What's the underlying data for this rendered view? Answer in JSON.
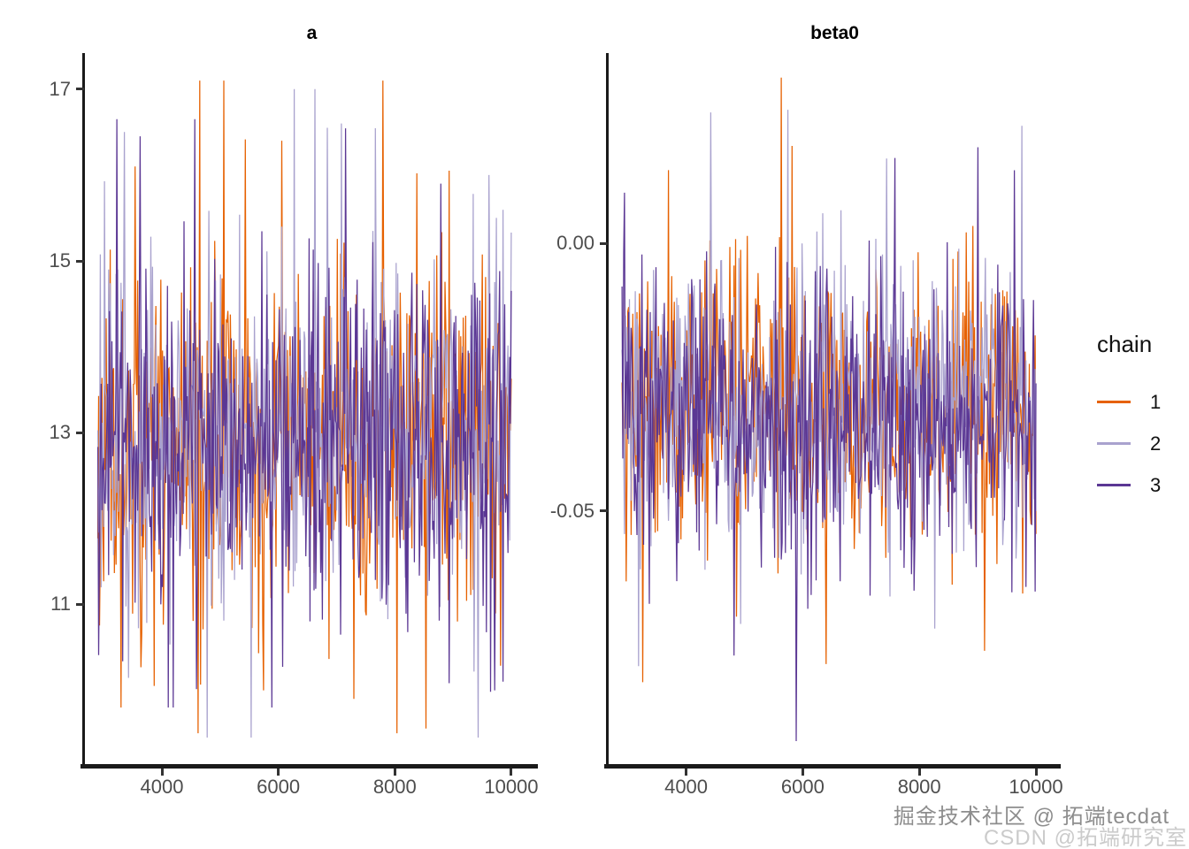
{
  "page": {
    "background": "#ffffff"
  },
  "legend": {
    "title": "chain",
    "items": [
      {
        "label": "1",
        "color": "#E66101"
      },
      {
        "label": "2",
        "color": "#A9A2CE"
      },
      {
        "label": "3",
        "color": "#5B3794"
      }
    ]
  },
  "watermark": {
    "line1": "掘金技术社区 @ 拓端tecdat",
    "line2": "CSDN @拓端研究室"
  },
  "axis": {
    "text_color": "#4d4d4d",
    "line_color": "#1a1a1a"
  },
  "chart_data": [
    {
      "type": "line",
      "title": "a",
      "xlabel": "",
      "ylabel": "",
      "x_ticks": [
        4000,
        6000,
        8000,
        10000
      ],
      "x_tick_labels": [
        "4000",
        "6000",
        "8000",
        "10000"
      ],
      "y_ticks": [
        17,
        15,
        13,
        11
      ],
      "y_tick_labels": [
        "17",
        "15",
        "13",
        "11"
      ],
      "xlim": [
        2663,
        10487
      ],
      "ylim": [
        9.11,
        17.42
      ],
      "x_start": 2900,
      "x_end": 10000,
      "grid": false,
      "legend_position": "right",
      "description": "MCMC trace plot of parameter a, 3 chains, iterations ~2900-10000, oscillating around ~12.9, observed range ~9.5-17.1",
      "series": [
        {
          "name": "1",
          "color": "#E66101",
          "n": 500,
          "seed": 11,
          "mean": 12.85,
          "sd": 0.95,
          "clamp": [
            9.5,
            17.1
          ],
          "spikes": [
            [
              0.305,
              17.1
            ],
            [
              0.09,
              16.1
            ],
            [
              0.445,
              16.4
            ],
            [
              0.85,
              16.05
            ],
            [
              0.62,
              9.9
            ],
            [
              0.4,
              10.0
            ]
          ]
        },
        {
          "name": "2",
          "color": "#A9A2CE",
          "n": 500,
          "seed": 22,
          "mean": 12.95,
          "sd": 0.95,
          "clamp": [
            9.45,
            17.0
          ],
          "spikes": [
            [
              0.475,
              17.0
            ],
            [
              0.065,
              16.5
            ],
            [
              0.555,
              16.55
            ],
            [
              0.59,
              16.6
            ],
            [
              0.945,
              16.0
            ],
            [
              0.37,
              9.45
            ]
          ]
        },
        {
          "name": "3",
          "color": "#5B3794",
          "n": 500,
          "seed": 33,
          "mean": 12.9,
          "sd": 0.92,
          "clamp": [
            9.8,
            16.65
          ],
          "spikes": [
            [
              0.235,
              16.65
            ],
            [
              0.83,
              15.9
            ],
            [
              0.42,
              9.8
            ],
            [
              0.96,
              10.0
            ]
          ]
        }
      ]
    },
    {
      "type": "line",
      "title": "beta0",
      "xlabel": "",
      "ylabel": "",
      "x_ticks": [
        4000,
        6000,
        8000,
        10000
      ],
      "x_tick_labels": [
        "4000",
        "6000",
        "8000",
        "10000"
      ],
      "y_ticks": [
        0,
        -0.05
      ],
      "y_tick_labels": [
        "0.00",
        "-0.05"
      ],
      "xlim": [
        2656,
        10440
      ],
      "ylim": [
        -0.0978,
        0.0356
      ],
      "x_start": 2900,
      "x_end": 10000,
      "grid": false,
      "legend_position": "right",
      "description": "MCMC trace plot of parameter beta0, 3 chains, iterations ~2900-10000, oscillating around ~-0.031, observed range ~-0.093 to +0.031",
      "series": [
        {
          "name": "1",
          "color": "#E66101",
          "n": 500,
          "seed": 44,
          "mean": -0.03,
          "sd": 0.0125,
          "clamp": [
            -0.085,
            0.031
          ],
          "spikes": [
            [
              0.385,
              0.031
            ],
            [
              0.05,
              -0.082
            ]
          ]
        },
        {
          "name": "2",
          "color": "#A9A2CE",
          "n": 500,
          "seed": 55,
          "mean": -0.031,
          "sd": 0.0125,
          "clamp": [
            -0.088,
            0.0255
          ],
          "spikes": [
            [
              0.215,
              0.0245
            ],
            [
              0.4,
              0.025
            ],
            [
              0.965,
              0.022
            ],
            [
              0.04,
              -0.079
            ]
          ]
        },
        {
          "name": "3",
          "color": "#5B3794",
          "n": 500,
          "seed": 66,
          "mean": -0.032,
          "sd": 0.0122,
          "clamp": [
            -0.093,
            0.018
          ],
          "spikes": [
            [
              0.66,
              0.016
            ],
            [
              0.42,
              -0.093
            ],
            [
              0.86,
              0.018
            ],
            [
              0.27,
              -0.077
            ]
          ]
        }
      ]
    }
  ]
}
